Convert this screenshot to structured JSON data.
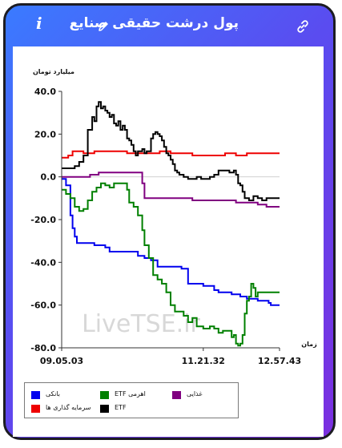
{
  "header": {
    "title": "پول درشت حقیقی صنایع",
    "info_icon": "i",
    "edit_icon": "pencil-icon",
    "link_icon": "link-icon"
  },
  "colors": {
    "banking": "#0000ee",
    "leveraged_etf": "#008000",
    "food": "#800080",
    "investment": "#ee0000",
    "etf": "#000000"
  },
  "chart_data": {
    "type": "line",
    "ylabel": "میلیارد تومان",
    "xlabel": "زمان",
    "ylim": [
      -80,
      40
    ],
    "yticks": [
      "40.0",
      "20.0",
      "0.0",
      "-20.0",
      "-40.0",
      "-60.0",
      "-80.0"
    ],
    "xticks": [
      "09.05.03",
      "11.21.32",
      "12.57.43"
    ],
    "watermark": "LiveTSE.ir",
    "series": [
      {
        "name": "بانکی",
        "color_key": "banking",
        "points": [
          [
            0,
            -1
          ],
          [
            2,
            -4
          ],
          [
            4,
            -18
          ],
          [
            5,
            -24
          ],
          [
            6,
            -28
          ],
          [
            7,
            -31
          ],
          [
            13,
            -31
          ],
          [
            15,
            -32
          ],
          [
            20,
            -33
          ],
          [
            22,
            -35
          ],
          [
            30,
            -35
          ],
          [
            35,
            -37
          ],
          [
            38,
            -38
          ],
          [
            41,
            -39
          ],
          [
            44,
            -42
          ],
          [
            50,
            -42
          ],
          [
            55,
            -43
          ],
          [
            58,
            -43
          ],
          [
            58,
            -50
          ],
          [
            65,
            -51
          ],
          [
            70,
            -53
          ],
          [
            72,
            -54
          ],
          [
            78,
            -55
          ],
          [
            82,
            -56
          ],
          [
            85,
            -57
          ],
          [
            90,
            -58
          ],
          [
            95,
            -59
          ],
          [
            96,
            -60
          ],
          [
            100,
            -60
          ]
        ]
      },
      {
        "name": "اهرمی ETF",
        "color_key": "leveraged_etf",
        "points": [
          [
            0,
            -6
          ],
          [
            2,
            -8
          ],
          [
            4,
            -10
          ],
          [
            6,
            -14
          ],
          [
            8,
            -16
          ],
          [
            10,
            -15
          ],
          [
            12,
            -11
          ],
          [
            14,
            -7
          ],
          [
            16,
            -5
          ],
          [
            18,
            -3
          ],
          [
            20,
            -4
          ],
          [
            22,
            -5
          ],
          [
            24,
            -3
          ],
          [
            26,
            -3
          ],
          [
            28,
            -3
          ],
          [
            30,
            -6
          ],
          [
            31,
            -12
          ],
          [
            33,
            -14
          ],
          [
            35,
            -18
          ],
          [
            37,
            -25
          ],
          [
            38,
            -32
          ],
          [
            40,
            -38
          ],
          [
            42,
            -46
          ],
          [
            44,
            -48
          ],
          [
            46,
            -50
          ],
          [
            48,
            -54
          ],
          [
            50,
            -60
          ],
          [
            52,
            -63
          ],
          [
            54,
            -63
          ],
          [
            56,
            -65
          ],
          [
            58,
            -68
          ],
          [
            60,
            -66
          ],
          [
            62,
            -70
          ],
          [
            65,
            -71
          ],
          [
            68,
            -70
          ],
          [
            70,
            -71
          ],
          [
            72,
            -73
          ],
          [
            74,
            -72
          ],
          [
            76,
            -72
          ],
          [
            78,
            -75
          ],
          [
            79,
            -74
          ],
          [
            80,
            -78
          ],
          [
            81,
            -79
          ],
          [
            82,
            -78
          ],
          [
            83,
            -74
          ],
          [
            84,
            -64
          ],
          [
            85,
            -58
          ],
          [
            86,
            -56
          ],
          [
            87,
            -50
          ],
          [
            88,
            -52
          ],
          [
            89,
            -56
          ],
          [
            90,
            -54
          ],
          [
            100,
            -54
          ]
        ]
      },
      {
        "name": "غذایی",
        "color_key": "food",
        "points": [
          [
            0,
            0
          ],
          [
            10,
            0
          ],
          [
            13,
            1
          ],
          [
            17,
            2
          ],
          [
            36,
            2
          ],
          [
            37,
            -3
          ],
          [
            38,
            -10
          ],
          [
            45,
            -10
          ],
          [
            60,
            -11
          ],
          [
            70,
            -11
          ],
          [
            80,
            -12
          ],
          [
            86,
            -12
          ],
          [
            90,
            -13
          ],
          [
            94,
            -14
          ],
          [
            100,
            -14
          ]
        ]
      },
      {
        "name": "سرمایه گذاری ها",
        "color_key": "investment",
        "points": [
          [
            0,
            9
          ],
          [
            3,
            10
          ],
          [
            5,
            12
          ],
          [
            8,
            12
          ],
          [
            10,
            11
          ],
          [
            15,
            12
          ],
          [
            25,
            12
          ],
          [
            30,
            11
          ],
          [
            40,
            11
          ],
          [
            45,
            12
          ],
          [
            50,
            11
          ],
          [
            55,
            11
          ],
          [
            60,
            10
          ],
          [
            70,
            10
          ],
          [
            75,
            11
          ],
          [
            80,
            10
          ],
          [
            85,
            11
          ],
          [
            95,
            11
          ],
          [
            100,
            11
          ]
        ]
      },
      {
        "name": "ETF",
        "color_key": "etf",
        "points": [
          [
            0,
            4
          ],
          [
            3,
            4
          ],
          [
            6,
            5
          ],
          [
            8,
            7
          ],
          [
            10,
            10
          ],
          [
            12,
            22
          ],
          [
            14,
            28
          ],
          [
            15,
            26
          ],
          [
            16,
            33
          ],
          [
            17,
            35
          ],
          [
            18,
            32
          ],
          [
            19,
            33
          ],
          [
            20,
            31
          ],
          [
            21,
            30
          ],
          [
            22,
            28
          ],
          [
            23,
            29
          ],
          [
            24,
            25
          ],
          [
            25,
            24
          ],
          [
            26,
            26
          ],
          [
            27,
            22
          ],
          [
            28,
            24
          ],
          [
            29,
            22
          ],
          [
            30,
            18
          ],
          [
            31,
            17
          ],
          [
            32,
            15
          ],
          [
            33,
            12
          ],
          [
            34,
            10
          ],
          [
            35,
            12
          ],
          [
            36,
            12
          ],
          [
            37,
            13
          ],
          [
            38,
            11
          ],
          [
            39,
            12
          ],
          [
            40,
            12
          ],
          [
            41,
            18
          ],
          [
            42,
            20
          ],
          [
            43,
            21
          ],
          [
            44,
            20
          ],
          [
            45,
            19
          ],
          [
            46,
            17
          ],
          [
            47,
            14
          ],
          [
            48,
            11
          ],
          [
            49,
            10
          ],
          [
            50,
            8
          ],
          [
            51,
            6
          ],
          [
            52,
            3
          ],
          [
            53,
            2
          ],
          [
            54,
            1
          ],
          [
            56,
            0
          ],
          [
            58,
            -1
          ],
          [
            60,
            -1
          ],
          [
            62,
            0
          ],
          [
            64,
            -1
          ],
          [
            66,
            -1
          ],
          [
            68,
            0
          ],
          [
            70,
            1
          ],
          [
            72,
            3
          ],
          [
            75,
            3
          ],
          [
            77,
            2
          ],
          [
            79,
            3
          ],
          [
            80,
            1
          ],
          [
            81,
            -3
          ],
          [
            82,
            -4
          ],
          [
            83,
            -7
          ],
          [
            84,
            -10
          ],
          [
            86,
            -11
          ],
          [
            88,
            -9
          ],
          [
            90,
            -10
          ],
          [
            92,
            -11
          ],
          [
            94,
            -10
          ],
          [
            100,
            -10
          ]
        ]
      }
    ],
    "legend": [
      {
        "label": "بانکی",
        "color_key": "banking"
      },
      {
        "label": "اهرمی ETF",
        "color_key": "leveraged_etf"
      },
      {
        "label": "غذایی",
        "color_key": "food"
      },
      {
        "label": "سرمایه گذاری ها",
        "color_key": "investment"
      },
      {
        "label": "ETF",
        "color_key": "etf"
      }
    ]
  }
}
